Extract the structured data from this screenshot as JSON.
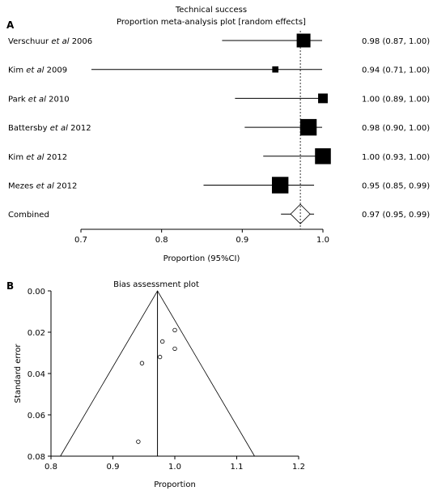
{
  "panel_a": {
    "letter": "A",
    "title": "Technical success",
    "subtitle": "Proportion meta-analysis plot [random effects]"
  },
  "panel_b": {
    "letter": "B",
    "title": "Bias assessment plot"
  },
  "chart_data": [
    {
      "type": "forest",
      "title": "Technical success",
      "subtitle": "Proportion meta-analysis plot [random effects]",
      "xlabel": "Proportion (95%CI)",
      "xlim": [
        0.7,
        1.0
      ],
      "xticks": [
        "0.7",
        "0.8",
        "0.9",
        "1.0"
      ],
      "studies": [
        {
          "author": "Verschuur ",
          "etal": "et al",
          "year": " 2006",
          "estimate": 0.976,
          "lo": 0.875,
          "hi": 0.999,
          "ci_text": "0.98 (0.87, 1.00)",
          "weight": 1.0
        },
        {
          "author": "Kim ",
          "etal": "et al",
          "year": " 2009",
          "estimate": 0.941,
          "lo": 0.713,
          "hi": 0.999,
          "ci_text": "0.94 (0.71, 1.00)",
          "weight": 0.45
        },
        {
          "author": "Park ",
          "etal": "et al",
          "year": " 2010",
          "estimate": 1.0,
          "lo": 0.891,
          "hi": 1.0,
          "ci_text": "1.00 (0.89, 1.00)",
          "weight": 0.7
        },
        {
          "author": "Battersby ",
          "etal": "et al",
          "year": " 2012",
          "estimate": 0.982,
          "lo": 0.903,
          "hi": 0.999,
          "ci_text": "0.98 (0.90, 1.00)",
          "weight": 1.2
        },
        {
          "author": "Kim ",
          "etal": "et al",
          "year": " 2012",
          "estimate": 1.0,
          "lo": 0.926,
          "hi": 1.0,
          "ci_text": "1.00 (0.93, 1.00)",
          "weight": 1.15
        },
        {
          "author": "Mezes ",
          "etal": "et al",
          "year": " 2012",
          "estimate": 0.947,
          "lo": 0.852,
          "hi": 0.989,
          "ci_text": "0.95 (0.85, 0.99)",
          "weight": 1.2
        }
      ],
      "combined": {
        "label": "Combined",
        "estimate": 0.972,
        "lo": 0.948,
        "hi": 0.989,
        "ci_text": "0.97 (0.95, 0.99)"
      }
    },
    {
      "type": "scatter",
      "title": "Bias assessment plot",
      "xlabel": "Proportion",
      "ylabel": "Standard error",
      "xlim": [
        0.8,
        1.2
      ],
      "ylim": [
        0.0,
        0.08
      ],
      "y_inverted": true,
      "xticks": [
        "0.8",
        "0.9",
        "1.0",
        "1.1",
        "1.2"
      ],
      "yticks": [
        "0.00",
        "0.02",
        "0.04",
        "0.06",
        "0.08"
      ],
      "funnel_center": 0.972,
      "points": [
        {
          "x": 1.0,
          "y": 0.019
        },
        {
          "x": 0.98,
          "y": 0.0245
        },
        {
          "x": 1.0,
          "y": 0.028
        },
        {
          "x": 0.976,
          "y": 0.032
        },
        {
          "x": 0.947,
          "y": 0.035
        },
        {
          "x": 0.941,
          "y": 0.073
        }
      ]
    }
  ]
}
